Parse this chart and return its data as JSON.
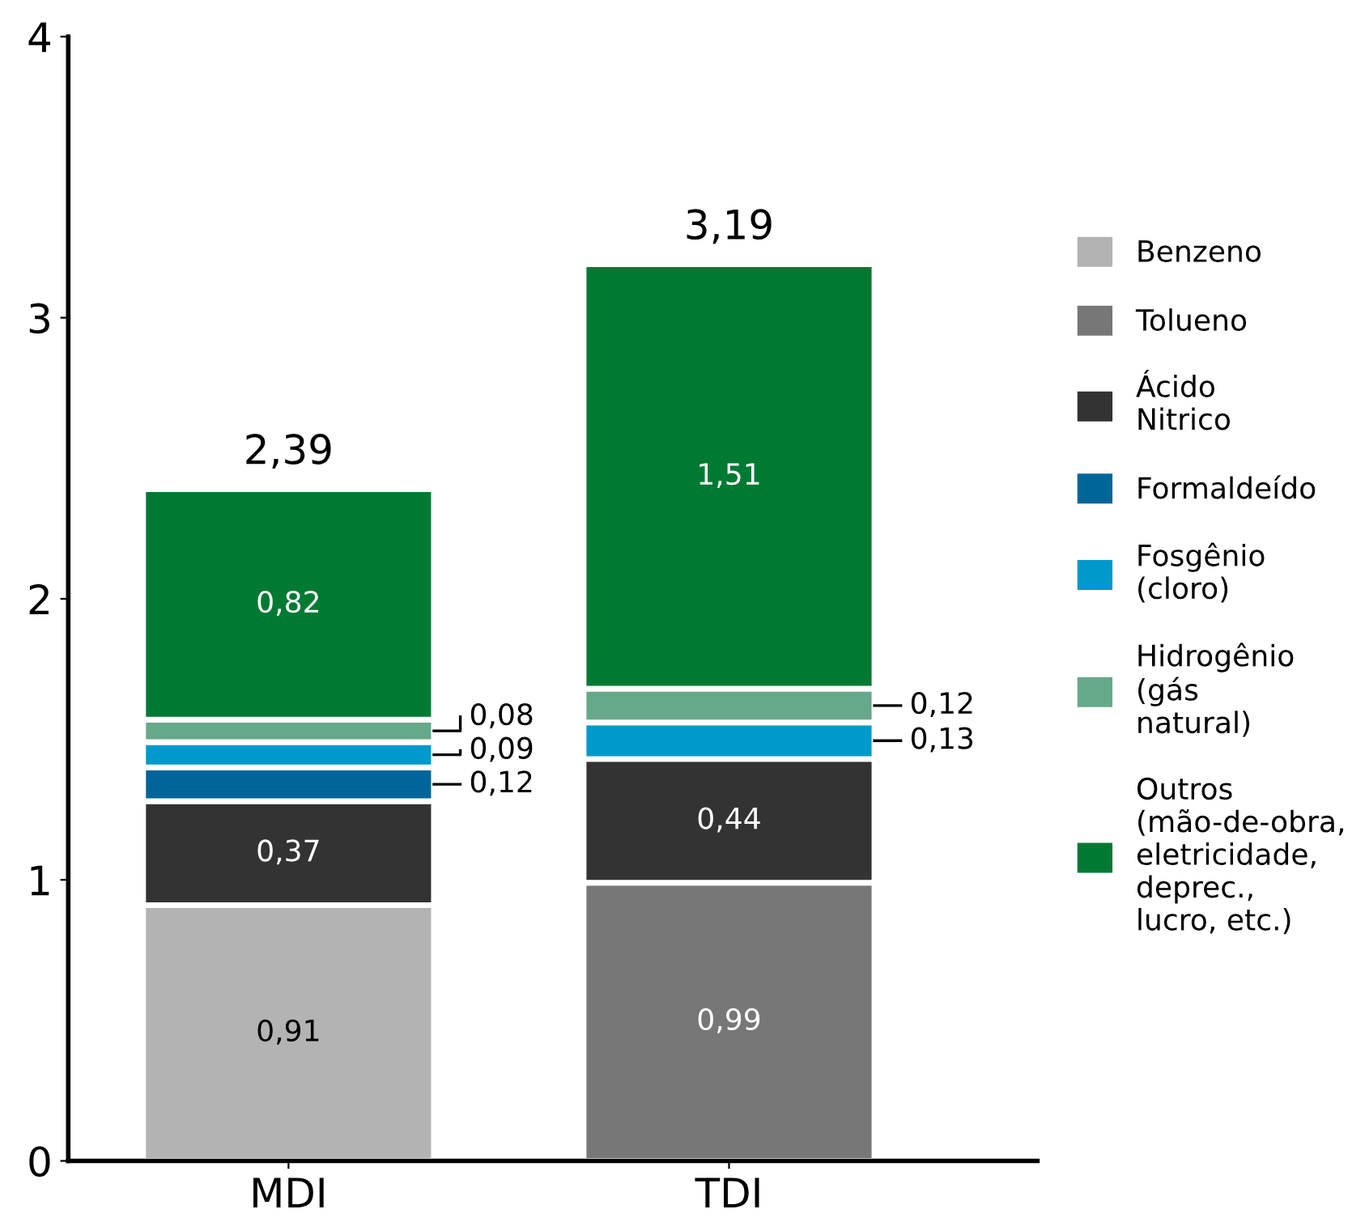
{
  "chart_data": {
    "type": "bar",
    "stacked": true,
    "categories": [
      "MDI",
      "TDI"
    ],
    "series": [
      {
        "name": "Benzeno",
        "color": "#b3b3b3",
        "values": [
          0.91,
          null
        ],
        "value_labels": [
          "0,91",
          null
        ]
      },
      {
        "name": "Tolueno",
        "color": "#777777",
        "values": [
          null,
          0.99
        ],
        "value_labels": [
          null,
          "0,99"
        ]
      },
      {
        "name": "Ácido\nNitrico",
        "color": "#333333",
        "values": [
          0.37,
          0.44
        ],
        "value_labels": [
          "0,37",
          "0,44"
        ]
      },
      {
        "name": "Formaldeído",
        "color": "#006699",
        "values": [
          0.12,
          null
        ],
        "value_labels": [
          "0,12",
          null
        ]
      },
      {
        "name": "Fosgênio\n(cloro)",
        "color": "#0099cc",
        "values": [
          0.09,
          0.13
        ],
        "value_labels": [
          "0,09",
          "0,13"
        ]
      },
      {
        "name": "Hidrogênio\n(gás\nnatural)",
        "color": "#66a88a",
        "values": [
          0.08,
          0.12
        ],
        "value_labels": [
          "0,08",
          "0,12"
        ]
      },
      {
        "name": "Outros\n(mão-de-obra,\neletricidade,\ndeprec.,\nlucro, etc.)",
        "color": "#007a33",
        "values": [
          0.82,
          1.51
        ],
        "value_labels": [
          "0,82",
          "1,51"
        ]
      }
    ],
    "totals": [
      "2,39",
      "3,19"
    ],
    "ylim": [
      0,
      4
    ],
    "yticks": [
      0,
      1,
      2,
      3,
      4
    ],
    "grid": false,
    "legend": "right"
  }
}
